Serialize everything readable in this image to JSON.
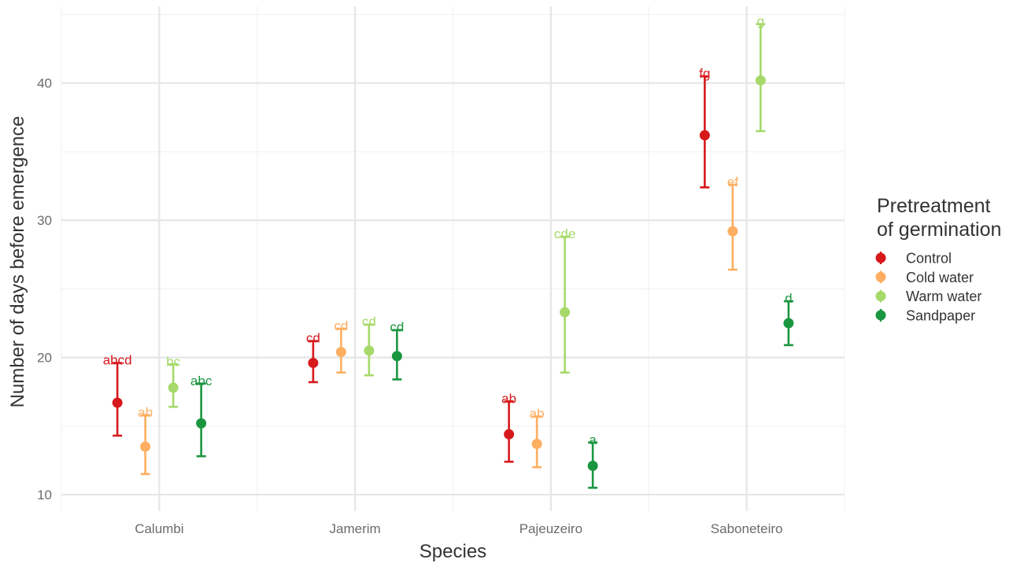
{
  "chart_data": {
    "type": "errorbar",
    "xlabel": "Species",
    "ylabel": "Number of days before emergence",
    "ylim": [
      8.8,
      45.6
    ],
    "yticks": [
      10,
      20,
      30,
      40
    ],
    "categories": [
      "Calumbi",
      "Jamerim",
      "Pajeuzeiro",
      "Saboneteiro"
    ],
    "grid": true,
    "legend": {
      "title_line1": "Pretreatment",
      "title_line2": "of germination",
      "position": "right"
    },
    "series": [
      {
        "name": "Control",
        "color": "#d7191c",
        "points": [
          {
            "mean": 16.7,
            "low": 14.3,
            "high": 19.6,
            "label": "abcd"
          },
          {
            "mean": 19.6,
            "low": 18.2,
            "high": 21.2,
            "label": "cd"
          },
          {
            "mean": 14.4,
            "low": 12.4,
            "high": 16.8,
            "label": "ab"
          },
          {
            "mean": 36.2,
            "low": 32.4,
            "high": 40.5,
            "label": "fg"
          }
        ]
      },
      {
        "name": "Cold water",
        "color": "#fdae61",
        "points": [
          {
            "mean": 13.5,
            "low": 11.5,
            "high": 15.8,
            "label": "ab"
          },
          {
            "mean": 20.4,
            "low": 18.9,
            "high": 22.1,
            "label": "cd"
          },
          {
            "mean": 13.7,
            "low": 12.0,
            "high": 15.7,
            "label": "ab"
          },
          {
            "mean": 29.2,
            "low": 26.4,
            "high": 32.6,
            "label": "ef"
          }
        ]
      },
      {
        "name": "Warm water",
        "color": "#a6d96a",
        "points": [
          {
            "mean": 17.8,
            "low": 16.4,
            "high": 19.5,
            "label": "bc"
          },
          {
            "mean": 20.5,
            "low": 18.7,
            "high": 22.4,
            "label": "cd"
          },
          {
            "mean": 23.3,
            "low": 18.9,
            "high": 28.8,
            "label": "cde"
          },
          {
            "mean": 40.2,
            "low": 36.5,
            "high": 44.3,
            "label": "g"
          }
        ]
      },
      {
        "name": "Sandpaper",
        "color": "#1a9641",
        "points": [
          {
            "mean": 15.2,
            "low": 12.8,
            "high": 18.1,
            "label": "abc"
          },
          {
            "mean": 20.1,
            "low": 18.4,
            "high": 22.0,
            "label": "cd"
          },
          {
            "mean": 12.1,
            "low": 10.5,
            "high": 13.8,
            "label": "a"
          },
          {
            "mean": 22.5,
            "low": 20.9,
            "high": 24.1,
            "label": "d"
          }
        ]
      }
    ]
  }
}
